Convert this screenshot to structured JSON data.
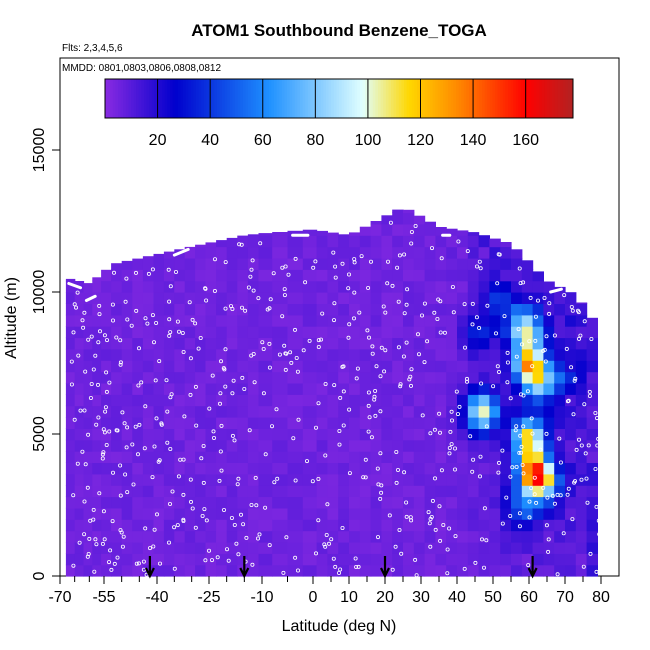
{
  "chart_data": {
    "type": "heatmap",
    "title": "ATOM1 Southbound Benzene_TOGA",
    "flights_note": "Flts: 2,3,4,5,6",
    "dates_note": "MMDD: 0801,0803,0806,0808,0812",
    "xlabel": "Latitude (deg N)",
    "ylabel": "Altitude (m)",
    "xlim": [
      -70,
      82
    ],
    "ylim": [
      0,
      18000
    ],
    "x_ticks": [
      -70,
      -55,
      -40,
      -25,
      -10,
      0,
      10,
      20,
      30,
      40,
      50,
      60,
      70,
      80
    ],
    "y_ticks": [
      0,
      5000,
      10000,
      15000
    ],
    "colorbar": {
      "min": 0,
      "max": 178,
      "tick_values": [
        20,
        40,
        60,
        80,
        100,
        120,
        140,
        160
      ],
      "colors": [
        "#8a2be2",
        "#0000cd",
        "#1e90ff",
        "#e0ffff",
        "#ffd700",
        "#ff8c00",
        "#ff0000",
        "#b22222"
      ],
      "color_positions": [
        0,
        0.15,
        0.35,
        0.55,
        0.65,
        0.75,
        0.9,
        1.0
      ]
    },
    "arrow_latitudes": [
      -42,
      -15,
      20,
      61
    ],
    "profile_hull": [
      [
        -68,
        0
      ],
      [
        -68,
        10500
      ],
      [
        -60,
        10300
      ],
      [
        -52,
        11000
      ],
      [
        -30,
        11600
      ],
      [
        -15,
        12000
      ],
      [
        0,
        12200
      ],
      [
        10,
        12000
      ],
      [
        25,
        13000
      ],
      [
        35,
        12300
      ],
      [
        45,
        12100
      ],
      [
        55,
        11700
      ],
      [
        65,
        10400
      ],
      [
        73,
        9900
      ],
      [
        78,
        9000
      ],
      [
        80,
        6000
      ],
      [
        80,
        0
      ]
    ],
    "hot_spots": [
      {
        "lat": 59,
        "alt": 8700,
        "value": 90
      },
      {
        "lat": 60,
        "alt": 7500,
        "value": 110
      },
      {
        "lat": 63,
        "alt": 6800,
        "value": 60
      },
      {
        "lat": 47,
        "alt": 5800,
        "value": 95
      },
      {
        "lat": 60,
        "alt": 4900,
        "value": 100
      },
      {
        "lat": 61,
        "alt": 3700,
        "value": 115
      },
      {
        "lat": 64,
        "alt": 3300,
        "value": 70
      },
      {
        "lat": 58,
        "alt": 2400,
        "value": 40
      },
      {
        "lat": 52,
        "alt": 9700,
        "value": 30
      },
      {
        "lat": 46,
        "alt": 8500,
        "value": 25
      },
      {
        "lat": 70,
        "alt": 7000,
        "value": 25
      }
    ]
  }
}
